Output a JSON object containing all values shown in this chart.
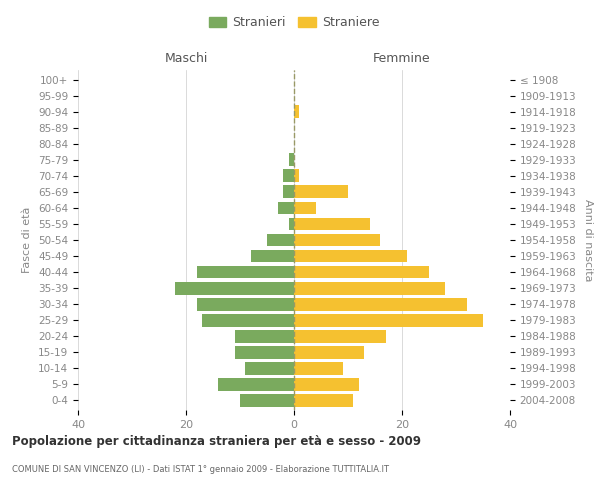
{
  "age_groups": [
    "0-4",
    "5-9",
    "10-14",
    "15-19",
    "20-24",
    "25-29",
    "30-34",
    "35-39",
    "40-44",
    "45-49",
    "50-54",
    "55-59",
    "60-64",
    "65-69",
    "70-74",
    "75-79",
    "80-84",
    "85-89",
    "90-94",
    "95-99",
    "100+"
  ],
  "birth_years": [
    "2004-2008",
    "1999-2003",
    "1994-1998",
    "1989-1993",
    "1984-1988",
    "1979-1983",
    "1974-1978",
    "1969-1973",
    "1964-1968",
    "1959-1963",
    "1954-1958",
    "1949-1953",
    "1944-1948",
    "1939-1943",
    "1934-1938",
    "1929-1933",
    "1924-1928",
    "1919-1923",
    "1914-1918",
    "1909-1913",
    "≤ 1908"
  ],
  "males": [
    10,
    14,
    9,
    11,
    11,
    17,
    18,
    22,
    18,
    8,
    5,
    1,
    3,
    2,
    2,
    1,
    0,
    0,
    0,
    0,
    0
  ],
  "females": [
    11,
    12,
    9,
    13,
    17,
    35,
    32,
    28,
    25,
    21,
    16,
    14,
    4,
    10,
    1,
    0,
    0,
    0,
    1,
    0,
    0
  ],
  "male_color": "#7aaa5e",
  "female_color": "#f5c130",
  "background_color": "#ffffff",
  "grid_color": "#cccccc",
  "title": "Popolazione per cittadinanza straniera per età e sesso - 2009",
  "subtitle": "COMUNE DI SAN VINCENZO (LI) - Dati ISTAT 1° gennaio 2009 - Elaborazione TUTTITALIA.IT",
  "xlabel_left": "Maschi",
  "xlabel_right": "Femmine",
  "ylabel_left": "Fasce di età",
  "ylabel_right": "Anni di nascita",
  "legend_male": "Stranieri",
  "legend_female": "Straniere",
  "xlim": 40,
  "bar_height": 0.8,
  "dashed_line_color": "#999966"
}
